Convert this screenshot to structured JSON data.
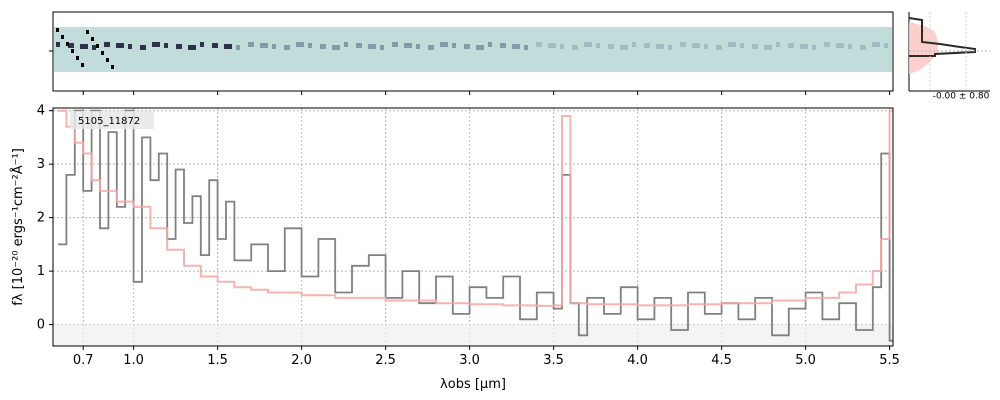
{
  "chart_data": {
    "type": "line",
    "object_label": "5105_11872",
    "side_panel_label": "-0.00 ± 0.80",
    "xlabel": "λobs [μm]",
    "ylabel": "fλ [10⁻²⁰ ergs⁻¹cm⁻²Å⁻¹]",
    "xlim": [
      0.52,
      5.52
    ],
    "ylim": [
      -0.4,
      4.05
    ],
    "grid": true,
    "x_ticks": [
      {
        "value": 0.7,
        "label": "0.7"
      },
      {
        "value": 1.0,
        "label": "1.0"
      },
      {
        "value": 1.5,
        "label": "1.5"
      },
      {
        "value": 2.0,
        "label": "2.0"
      },
      {
        "value": 2.5,
        "label": "2.5"
      },
      {
        "value": 3.0,
        "label": "3.0"
      },
      {
        "value": 3.5,
        "label": "3.5"
      },
      {
        "value": 4.0,
        "label": "4.0"
      },
      {
        "value": 4.5,
        "label": "4.5"
      },
      {
        "value": 5.0,
        "label": "5.0"
      },
      {
        "value": 5.5,
        "label": "5.5"
      }
    ],
    "y_ticks": [
      {
        "value": 0,
        "label": "0"
      },
      {
        "value": 1,
        "label": "1"
      },
      {
        "value": 2,
        "label": "2"
      },
      {
        "value": 3,
        "label": "3"
      },
      {
        "value": 4,
        "label": "4"
      }
    ],
    "series": [
      {
        "color": "#808080",
        "x": [
          0.55,
          0.6,
          0.65,
          0.7,
          0.75,
          0.8,
          0.85,
          0.9,
          0.95,
          1.0,
          1.05,
          1.1,
          1.15,
          1.2,
          1.25,
          1.3,
          1.35,
          1.4,
          1.45,
          1.5,
          1.55,
          1.6,
          1.7,
          1.8,
          1.9,
          2.0,
          2.1,
          2.2,
          2.3,
          2.4,
          2.5,
          2.6,
          2.7,
          2.8,
          2.9,
          3.0,
          3.1,
          3.2,
          3.3,
          3.4,
          3.5,
          3.55,
          3.6,
          3.65,
          3.7,
          3.8,
          3.9,
          4.0,
          4.1,
          4.2,
          4.3,
          4.4,
          4.5,
          4.6,
          4.7,
          4.8,
          4.9,
          5.0,
          5.1,
          5.2,
          5.3,
          5.4,
          5.45,
          5.5
        ],
        "y": [
          1.5,
          2.8,
          4.0,
          2.5,
          4.0,
          1.8,
          3.6,
          2.2,
          4.0,
          0.8,
          3.5,
          2.7,
          3.2,
          1.6,
          2.9,
          1.9,
          2.4,
          1.3,
          2.7,
          1.6,
          2.3,
          1.2,
          1.5,
          1.0,
          1.8,
          0.9,
          1.6,
          0.6,
          1.1,
          1.3,
          0.5,
          1.0,
          0.4,
          0.9,
          0.2,
          0.7,
          0.5,
          0.9,
          0.1,
          0.6,
          0.3,
          2.8,
          0.4,
          -0.2,
          0.5,
          0.2,
          0.7,
          0.1,
          0.5,
          -0.1,
          0.6,
          0.2,
          0.4,
          0.1,
          0.5,
          -0.2,
          0.3,
          0.6,
          0.1,
          0.4,
          -0.1,
          0.7,
          3.2,
          -0.3
        ]
      },
      {
        "color": "#f4a7a3",
        "x": [
          0.55,
          0.6,
          0.65,
          0.7,
          0.75,
          0.8,
          0.9,
          1.0,
          1.1,
          1.2,
          1.3,
          1.4,
          1.5,
          1.6,
          1.7,
          1.8,
          2.0,
          2.2,
          2.5,
          2.8,
          3.0,
          3.2,
          3.4,
          3.5,
          3.55,
          3.6,
          3.7,
          4.0,
          4.3,
          4.5,
          4.8,
          5.0,
          5.2,
          5.3,
          5.4,
          5.45,
          5.5
        ],
        "y": [
          4.0,
          3.7,
          3.4,
          3.2,
          2.7,
          2.5,
          2.3,
          2.2,
          1.8,
          1.4,
          1.1,
          0.9,
          0.8,
          0.7,
          0.65,
          0.6,
          0.55,
          0.5,
          0.45,
          0.4,
          0.38,
          0.36,
          0.35,
          0.36,
          3.9,
          0.4,
          0.38,
          0.36,
          0.38,
          0.4,
          0.45,
          0.5,
          0.6,
          0.75,
          1.0,
          1.6,
          4.0
        ]
      }
    ]
  }
}
